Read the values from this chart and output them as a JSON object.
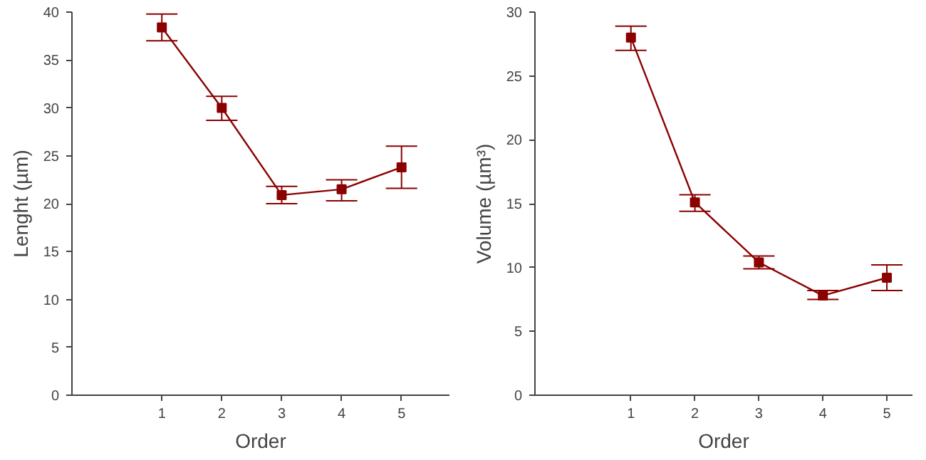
{
  "chart_data": [
    {
      "type": "line",
      "xlabel": "Order",
      "ylabel": "Lenght (µm)",
      "x": [
        1,
        2,
        3,
        4,
        5
      ],
      "xlim": [
        -0.5,
        5.8
      ],
      "xticks": [
        1,
        2,
        3,
        4,
        5
      ],
      "ylim": [
        0,
        40
      ],
      "yticks": [
        0,
        5,
        10,
        15,
        20,
        25,
        30,
        35,
        40
      ],
      "grid": false,
      "marker": "square",
      "line_style": "solid",
      "series": [
        {
          "color": "#8b0000",
          "values": [
            38.4,
            30.0,
            20.9,
            21.5,
            23.8
          ],
          "errors": [
            [
              37.0,
              39.8
            ],
            [
              28.7,
              31.2
            ],
            [
              20.0,
              21.8
            ],
            [
              20.3,
              22.5
            ],
            [
              21.6,
              26.0
            ]
          ]
        }
      ]
    },
    {
      "type": "line",
      "xlabel": "Order",
      "ylabel": "Volume (µm³)",
      "x": [
        1,
        2,
        3,
        4,
        5
      ],
      "xlim": [
        -0.5,
        5.4
      ],
      "xticks": [
        1,
        2,
        3,
        4,
        5
      ],
      "ylim": [
        0,
        30
      ],
      "yticks": [
        0,
        5,
        10,
        15,
        20,
        25,
        30
      ],
      "grid": false,
      "marker": "square",
      "line_style": "solid",
      "series": [
        {
          "color": "#8b0000",
          "values": [
            28.0,
            15.1,
            10.4,
            7.8,
            9.2
          ],
          "errors": [
            [
              27.0,
              28.9
            ],
            [
              14.4,
              15.7
            ],
            [
              9.9,
              10.9
            ],
            [
              7.5,
              8.2
            ],
            [
              8.2,
              10.2
            ]
          ]
        }
      ]
    }
  ]
}
